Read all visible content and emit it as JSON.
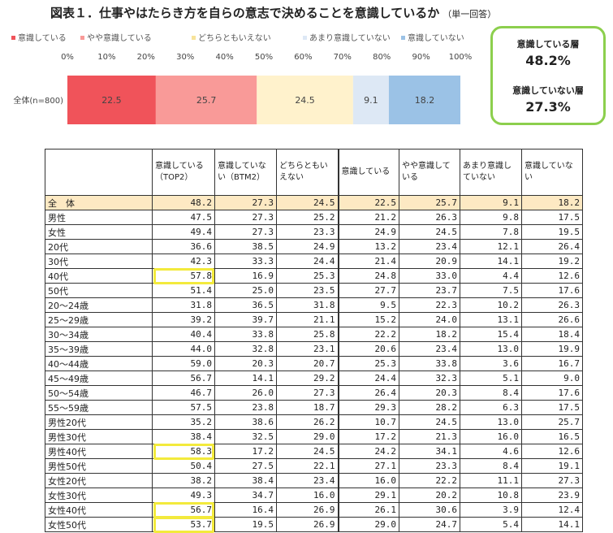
{
  "title": "図表１．仕事やはたらき方を自らの意志で決めることを意識しているか",
  "title_note": "（単一回答）",
  "colors": {
    "series": [
      "#f0535a",
      "#f99a98",
      "#fff2cc",
      "#dde8f5",
      "#9bc2e6"
    ],
    "summary_border": "#8ccf4d",
    "highlight": "#f3ea3c",
    "total_row_bg": "#fde9c3"
  },
  "chart_data": {
    "type": "bar",
    "orientation": "horizontal",
    "stacked": true,
    "categories": [
      "全体(n=800)"
    ],
    "series": [
      {
        "name": "意識している",
        "values": [
          22.5
        ]
      },
      {
        "name": "やや意識している",
        "values": [
          25.7
        ]
      },
      {
        "name": "どちらともいえない",
        "values": [
          24.5
        ]
      },
      {
        "name": "あまり意識していない",
        "values": [
          9.1
        ]
      },
      {
        "name": "意識していない",
        "values": [
          18.2
        ]
      }
    ],
    "xticks": [
      "0%",
      "10%",
      "20%",
      "30%",
      "40%",
      "50%",
      "60%",
      "70%",
      "80%",
      "90%",
      "100%"
    ],
    "xlim": [
      0,
      100
    ],
    "legend": "top",
    "grid": false
  },
  "summary": {
    "aware_label": "意識している層",
    "aware_value": "48.2%",
    "unaware_label": "意識していない層",
    "unaware_value": "27.3%"
  },
  "table": {
    "columns": [
      "意識している（TOP2）",
      "意識していない（BTM2）",
      "どちらともいえない",
      "意識している",
      "やや意識している",
      "あまり意識していない",
      "意識していない"
    ],
    "rows": [
      {
        "label": "全　体",
        "values": [
          "48.2",
          "27.3",
          "24.5",
          "22.5",
          "25.7",
          "9.1",
          "18.2"
        ]
      },
      {
        "label": "男性",
        "values": [
          "47.5",
          "27.3",
          "25.2",
          "21.2",
          "26.3",
          "9.8",
          "17.5"
        ]
      },
      {
        "label": "女性",
        "values": [
          "49.4",
          "27.3",
          "23.3",
          "24.9",
          "24.5",
          "7.8",
          "19.5"
        ]
      },
      {
        "label": "20代",
        "values": [
          "36.6",
          "38.5",
          "24.9",
          "13.2",
          "23.4",
          "12.1",
          "26.4"
        ]
      },
      {
        "label": "30代",
        "values": [
          "42.3",
          "33.3",
          "24.4",
          "21.4",
          "20.9",
          "14.1",
          "19.2"
        ]
      },
      {
        "label": "40代",
        "values": [
          "57.8",
          "16.9",
          "25.3",
          "24.8",
          "33.0",
          "4.4",
          "12.6"
        ]
      },
      {
        "label": "50代",
        "values": [
          "51.4",
          "25.0",
          "23.5",
          "27.7",
          "23.7",
          "7.5",
          "17.6"
        ]
      },
      {
        "label": "20～24歳",
        "values": [
          "31.8",
          "36.5",
          "31.8",
          "9.5",
          "22.3",
          "10.2",
          "26.3"
        ]
      },
      {
        "label": "25～29歳",
        "values": [
          "39.2",
          "39.7",
          "21.1",
          "15.2",
          "24.0",
          "13.1",
          "26.6"
        ]
      },
      {
        "label": "30～34歳",
        "values": [
          "40.4",
          "33.8",
          "25.8",
          "22.2",
          "18.2",
          "15.4",
          "18.4"
        ]
      },
      {
        "label": "35～39歳",
        "values": [
          "44.0",
          "32.8",
          "23.1",
          "20.6",
          "23.4",
          "13.0",
          "19.9"
        ]
      },
      {
        "label": "40～44歳",
        "values": [
          "59.0",
          "20.3",
          "20.7",
          "25.3",
          "33.8",
          "3.6",
          "16.7"
        ]
      },
      {
        "label": "45～49歳",
        "values": [
          "56.7",
          "14.1",
          "29.2",
          "24.4",
          "32.3",
          "5.1",
          "9.0"
        ]
      },
      {
        "label": "50～54歳",
        "values": [
          "46.7",
          "26.0",
          "27.3",
          "26.4",
          "20.3",
          "8.4",
          "17.6"
        ]
      },
      {
        "label": "55～59歳",
        "values": [
          "57.5",
          "23.8",
          "18.7",
          "29.3",
          "28.2",
          "6.3",
          "17.5"
        ]
      },
      {
        "label": "男性20代",
        "values": [
          "35.2",
          "38.6",
          "26.2",
          "10.7",
          "24.5",
          "13.0",
          "25.7"
        ]
      },
      {
        "label": "男性30代",
        "values": [
          "38.4",
          "32.5",
          "29.0",
          "17.2",
          "21.3",
          "16.0",
          "16.5"
        ]
      },
      {
        "label": "男性40代",
        "values": [
          "58.3",
          "17.2",
          "24.5",
          "24.2",
          "34.1",
          "4.6",
          "12.6"
        ]
      },
      {
        "label": "男性50代",
        "values": [
          "50.4",
          "27.5",
          "22.1",
          "27.1",
          "23.3",
          "8.4",
          "19.1"
        ]
      },
      {
        "label": "女性20代",
        "values": [
          "38.2",
          "38.4",
          "23.4",
          "16.0",
          "22.2",
          "11.1",
          "27.3"
        ]
      },
      {
        "label": "女性30代",
        "values": [
          "49.3",
          "34.7",
          "16.0",
          "29.1",
          "20.2",
          "10.8",
          "23.9"
        ]
      },
      {
        "label": "女性40代",
        "values": [
          "56.7",
          "16.4",
          "26.9",
          "26.1",
          "30.6",
          "3.9",
          "12.4"
        ]
      },
      {
        "label": "女性50代",
        "values": [
          "53.7",
          "19.5",
          "26.9",
          "29.0",
          "24.7",
          "5.4",
          "14.1"
        ]
      }
    ],
    "highlighted_rows": [
      "40代",
      "男性40代",
      "女性40代",
      "女性50代"
    ]
  }
}
